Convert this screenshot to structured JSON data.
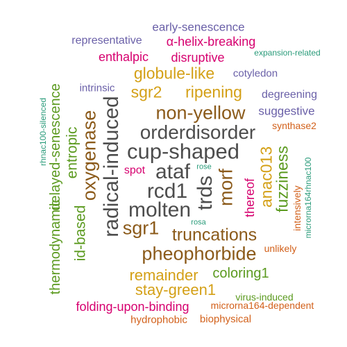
{
  "words": {
    "orderdisorder": "orderdisorder",
    "cup_shaped": "cup-shaped",
    "ataf": "ataf",
    "rcd1": "rcd1",
    "molten": "molten",
    "radical_induced": "radical-induced",
    "trds": "trds",
    "morf": "morf",
    "non_yellow": "non-yellow",
    "pheophorbide": "pheophorbide",
    "sgr1": "sgr1",
    "truncations": "truncations",
    "oxygenase": "oxygenase",
    "globule_like": "globule-like",
    "ripening": "ripening",
    "remainder": "remainder",
    "stay_green1": "stay-green1",
    "anac013": "anac013",
    "sgr2": "sgr2",
    "entropic": "entropic",
    "delayed_senescence": "delayed-senescence",
    "id_based": "id-based",
    "thermodynamic": "thermodynamic",
    "fuzziness": "fuzziness",
    "coloring1": "coloring1",
    "folding_upon_binding": "folding-upon-binding",
    "alpha_helix_breaking": "α-helix-breaking",
    "early_senescence": "early-senescence",
    "representative": "representative",
    "enthalpic": "enthalpic",
    "disruptive": "disruptive",
    "thereof": "thereof",
    "cotyledon": "cotyledon",
    "intrinsic": "intrinsic",
    "degreening": "degreening",
    "suggestive": "suggestive",
    "synthase2": "synthase2",
    "spot": "spot",
    "intensively": "intensively",
    "unlikely": "unlikely",
    "hydrophobic": "hydrophobic",
    "biophysical": "biophysical",
    "microrna164_dependent": "microrna164-dependent",
    "virus_induced": "virus-induced",
    "expansion_related": "expansion-related",
    "rhnac100_silenced": "rhnac100-silenced",
    "microrna164rhnac100": "microrna164rhnac100",
    "rose": "rose",
    "rosa": "rosa"
  },
  "colors": {
    "dark_gray": "#4d4d4d",
    "brown": "#8b5a1a",
    "gold": "#d4a017",
    "green": "#5b9a1f",
    "magenta": "#d6006f",
    "purple": "#6a60a8",
    "orange": "#d2601a",
    "teal": "#2a9b7a"
  }
}
